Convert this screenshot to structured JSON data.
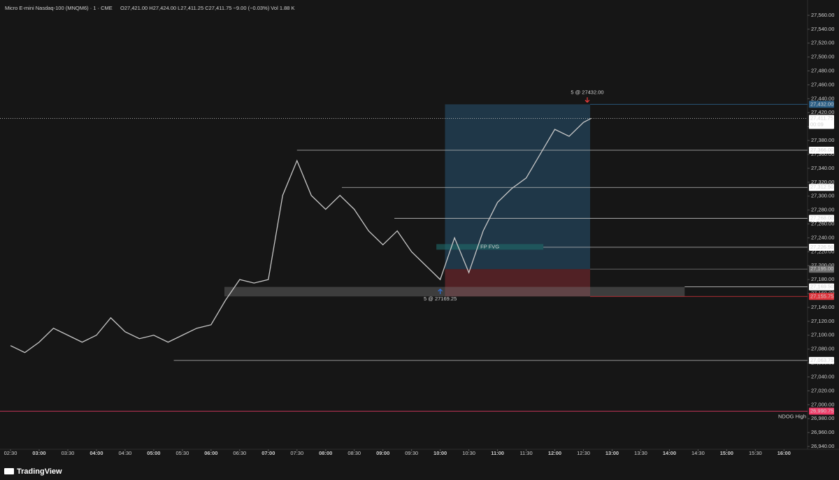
{
  "chart_data": {
    "type": "line",
    "title": "Micro E-mini Nasdaq-100 (MNQM6) · 1 · CME",
    "subtitle": "O27,421.00 H27,424.00 L27,411.25 C27,411.75 −9.00 (−0.03%) Vol 1.88 K",
    "brand": "TradingView",
    "x": [
      "02:30",
      "02:45",
      "03:00",
      "03:15",
      "03:30",
      "03:45",
      "04:00",
      "04:15",
      "04:30",
      "04:45",
      "05:00",
      "05:15",
      "05:30",
      "05:45",
      "06:00",
      "06:15",
      "06:30",
      "06:45",
      "07:00",
      "07:15",
      "07:30",
      "07:45",
      "08:00",
      "08:15",
      "08:30",
      "08:45",
      "09:00",
      "09:15",
      "09:30",
      "09:45",
      "10:00",
      "10:15",
      "10:30",
      "10:45",
      "11:00",
      "11:15",
      "11:30",
      "11:45",
      "12:00",
      "12:15",
      "12:30",
      "12:38"
    ],
    "series": [
      {
        "name": "MNQM6",
        "color": "#c8c8c8",
        "values": [
          27085,
          27075,
          27090,
          27110,
          27100,
          27090,
          27100,
          27125,
          27105,
          27095,
          27100,
          27090,
          27100,
          27110,
          27115,
          27150,
          27180,
          27175,
          27180,
          27301,
          27351,
          27301,
          27281,
          27301,
          27281,
          27250,
          27230,
          27250,
          27220,
          27200,
          27180,
          27240,
          27190,
          27250,
          27291,
          27311,
          27326,
          27361,
          27396,
          27386,
          27406,
          27411.75
        ]
      }
    ],
    "xlim": [
      "02:19",
      "16:21"
    ],
    "xticks": [
      "02:30",
      "03:00",
      "03:30",
      "04:00",
      "04:30",
      "05:00",
      "05:30",
      "06:00",
      "06:30",
      "07:00",
      "07:30",
      "08:00",
      "08:30",
      "09:00",
      "09:30",
      "10:00",
      "10:30",
      "11:00",
      "11:30",
      "12:00",
      "12:30",
      "13:00",
      "13:30",
      "14:00",
      "14:30",
      "15:00",
      "15:30",
      "16:00"
    ],
    "ylim": [
      26936,
      27582
    ],
    "yticks": [
      {
        "value": 26940,
        "label": "26,940.00"
      },
      {
        "value": 26960,
        "label": "26,960.00"
      },
      {
        "value": 26980,
        "label": "26,980.00"
      },
      {
        "value": 27000,
        "label": "27,000.00"
      },
      {
        "value": 27020,
        "label": "27,020.00"
      },
      {
        "value": 27040,
        "label": "27,040.00"
      },
      {
        "value": 27060,
        "label": "27,060.00"
      },
      {
        "value": 27080,
        "label": "27,080.00"
      },
      {
        "value": 27100,
        "label": "27,100.00"
      },
      {
        "value": 27120,
        "label": "27,120.00"
      },
      {
        "value": 27140,
        "label": "27,140.00"
      },
      {
        "value": 27160,
        "label": "27,160.00"
      },
      {
        "value": 27180,
        "label": "27,180.00"
      },
      {
        "value": 27200,
        "label": "27,200.00"
      },
      {
        "value": 27220,
        "label": "27,220.00"
      },
      {
        "value": 27240,
        "label": "27,240.00"
      },
      {
        "value": 27260,
        "label": "27,260.00"
      },
      {
        "value": 27280,
        "label": "27,280.00"
      },
      {
        "value": 27300,
        "label": "27,300.00"
      },
      {
        "value": 27320,
        "label": "27,320.00"
      },
      {
        "value": 27340,
        "label": "27,340.00"
      },
      {
        "value": 27360,
        "label": "27,360.00"
      },
      {
        "value": 27380,
        "label": "27,380.00"
      },
      {
        "value": 27400,
        "label": "27,400.00"
      },
      {
        "value": 27420,
        "label": "27,420.00"
      },
      {
        "value": 27440,
        "label": "27,440.00"
      },
      {
        "value": 27460,
        "label": "27,460.00"
      },
      {
        "value": 27480,
        "label": "27,480.00"
      },
      {
        "value": 27500,
        "label": "27,500.00"
      },
      {
        "value": 27520,
        "label": "27,520.00"
      },
      {
        "value": 27540,
        "label": "27,540.00"
      },
      {
        "value": 27560,
        "label": "27,560.00"
      }
    ],
    "position": {
      "start": "10:05",
      "end": "12:37",
      "target": 27432,
      "entry": 27195,
      "stop": 27155.75
    },
    "zone": {
      "start": "06:14",
      "end": "14:16",
      "high": 27169.5,
      "low": 27155.75
    },
    "fvg": {
      "start": "09:56",
      "end": "11:48",
      "high": 27231,
      "low": 27223,
      "label": "FP FVG"
    },
    "levels": [
      {
        "value": 27432,
        "label": "27,432.00",
        "start": "12:37",
        "color": "#2b5f86",
        "text_color": "#ffffff"
      },
      {
        "value": 27411.75,
        "label": "27,411.75",
        "timer": "00:09",
        "start": "02:19",
        "color": "#ffffff",
        "text_color": "#000000"
      },
      {
        "value": 27366,
        "label": "27,366.00",
        "start": "07:30",
        "color": "#ffffff",
        "text_color": "#000000"
      },
      {
        "value": 27312.5,
        "label": "27,312.50",
        "start": "08:17",
        "color": "#ffffff",
        "text_color": "#000000"
      },
      {
        "value": 27268,
        "label": "27,268.00",
        "start": "09:12",
        "color": "#ffffff",
        "text_color": "#000000"
      },
      {
        "value": 27226.5,
        "label": "27,226.50",
        "start": "11:48",
        "color": "#ffffff",
        "text_color": "#000000"
      },
      {
        "value": 27195,
        "label": "27,195.00",
        "start": "12:37",
        "color": "#6e6e6e",
        "text_color": "#ffffff"
      },
      {
        "value": 27169.5,
        "label": "27,169.50",
        "start": "14:16",
        "color": "#ffffff",
        "text_color": "#000000"
      },
      {
        "value": 27155.75,
        "label": "27,155.75",
        "start": "12:37",
        "color": "#e0353d",
        "text_color": "#ffffff"
      },
      {
        "value": 27063.75,
        "label": "27,063.75",
        "start": "05:21",
        "color": "#ffffff",
        "text_color": "#000000"
      },
      {
        "value": 26990.75,
        "label": "26,990.75",
        "start": "02:19",
        "color": "#f23d6a",
        "text_color": "#ffffff",
        "note": "NDOG High"
      }
    ],
    "annotations": [
      {
        "text": "5 @ 27432.00",
        "time": "12:34",
        "price": 27432,
        "side": "sell"
      },
      {
        "text": "5 @ 27169.25",
        "time": "10:00",
        "price": 27169.25,
        "side": "buy"
      }
    ]
  }
}
